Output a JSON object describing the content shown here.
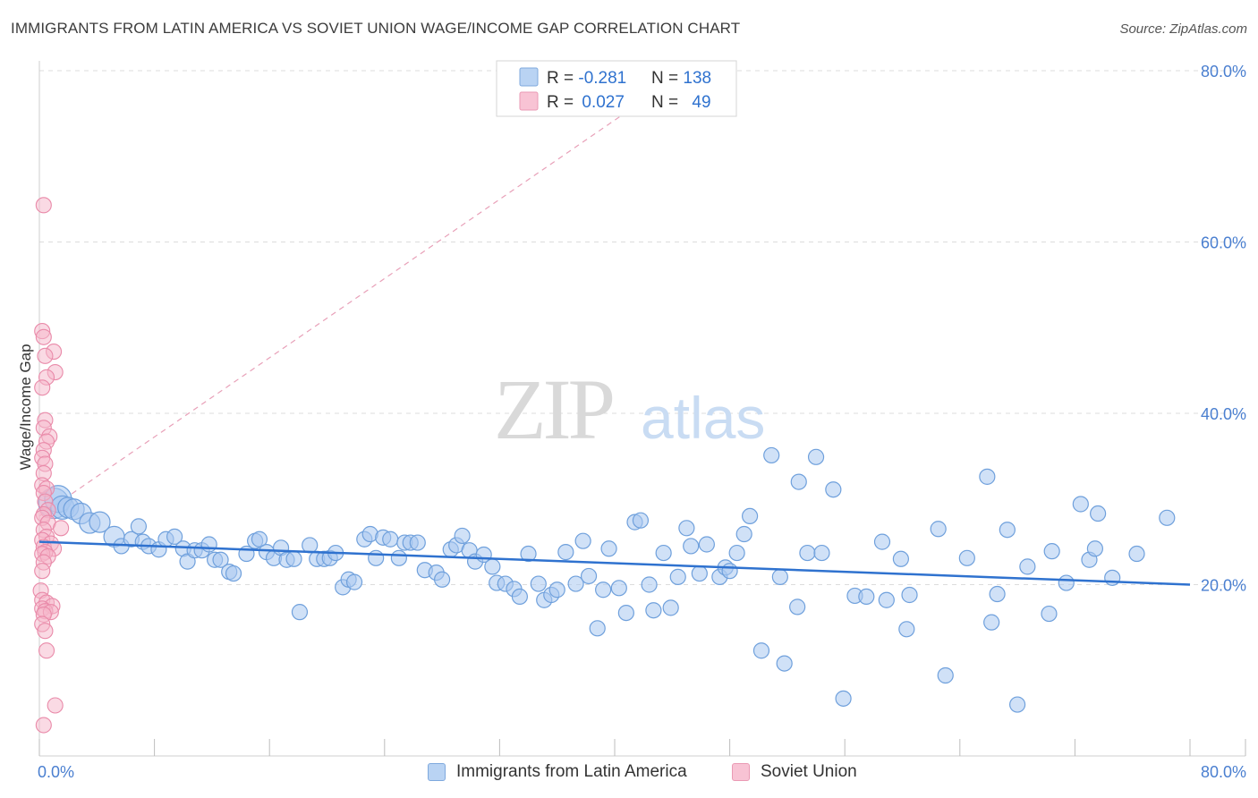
{
  "header": {
    "title": "IMMIGRANTS FROM LATIN AMERICA VS SOVIET UNION WAGE/INCOME GAP CORRELATION CHART",
    "source": "Source: ZipAtlas.com"
  },
  "watermark": {
    "zip": "ZIP",
    "atlas": "atlas"
  },
  "colors": {
    "blue_fill": "#a9c8f0",
    "blue_stroke": "#6fa0dc",
    "blue_line": "#2f72cf",
    "pink_fill": "#f6b5ca",
    "pink_stroke": "#e98aa9",
    "pink_line": "#e8a0b8",
    "axis_text": "#4a7fd0",
    "grid": "#dcdcdc"
  },
  "legend_top": {
    "rows": [
      {
        "r_label": "R = ",
        "r_value": "-0.281",
        "n_label": "N = ",
        "n_value": "138"
      },
      {
        "r_label": "R = ",
        "r_value": "0.027",
        "n_label": "N = ",
        "n_value": "49"
      }
    ]
  },
  "legend_bottom": {
    "series_a": "Immigrants from Latin America",
    "series_b": "Soviet Union"
  },
  "chart_data": {
    "type": "scatter",
    "title": "IMMIGRANTS FROM LATIN AMERICA VS SOVIET UNION WAGE/INCOME GAP CORRELATION CHART",
    "xlabel": "",
    "ylabel": "Wage/Income Gap",
    "xlim": [
      0,
      80
    ],
    "ylim": [
      0,
      80
    ],
    "x_tick_labels": [
      "0.0%",
      "80.0%"
    ],
    "y_tick_labels": [
      "20.0%",
      "40.0%",
      "60.0%",
      "80.0%"
    ],
    "y_ticks": [
      20,
      40,
      60,
      80
    ],
    "grid": true,
    "legend_position": "top-center",
    "series": [
      {
        "name": "Immigrants from Latin America",
        "r": -0.281,
        "n": 138,
        "trend": {
          "x": [
            0,
            80
          ],
          "y": [
            25.0,
            20.0
          ]
        },
        "points": [
          [
            1.0,
            29.5,
            5
          ],
          [
            1.3,
            30.0,
            4
          ],
          [
            1.6,
            29.0,
            3
          ],
          [
            2.0,
            29.0,
            2
          ],
          [
            2.4,
            28.8,
            2
          ],
          [
            2.9,
            28.3,
            2
          ],
          [
            3.5,
            27.2,
            2
          ],
          [
            4.2,
            27.3,
            2
          ],
          [
            5.2,
            25.6,
            2
          ],
          [
            5.7,
            24.5,
            1
          ],
          [
            6.4,
            25.3,
            1
          ],
          [
            6.9,
            26.8,
            1
          ],
          [
            7.2,
            25.0,
            1
          ],
          [
            7.6,
            24.5,
            1
          ],
          [
            8.3,
            24.1,
            1
          ],
          [
            8.8,
            25.3,
            1
          ],
          [
            9.4,
            25.6,
            1
          ],
          [
            10.0,
            24.2,
            1
          ],
          [
            10.3,
            22.7,
            1
          ],
          [
            10.8,
            24.0,
            1
          ],
          [
            11.3,
            24.0,
            1
          ],
          [
            11.8,
            24.7,
            1
          ],
          [
            12.2,
            22.9,
            1
          ],
          [
            12.6,
            22.9,
            1
          ],
          [
            13.2,
            21.5,
            1
          ],
          [
            13.5,
            21.3,
            1
          ],
          [
            14.4,
            23.6,
            1
          ],
          [
            15.0,
            25.1,
            1
          ],
          [
            15.3,
            25.3,
            1
          ],
          [
            15.8,
            23.8,
            1
          ],
          [
            16.3,
            23.1,
            1
          ],
          [
            16.8,
            24.3,
            1
          ],
          [
            17.2,
            22.9,
            1
          ],
          [
            17.7,
            23.0,
            1
          ],
          [
            18.1,
            16.8,
            1
          ],
          [
            18.8,
            24.6,
            1
          ],
          [
            19.3,
            23.0,
            1
          ],
          [
            19.8,
            23.0,
            1
          ],
          [
            20.2,
            23.1,
            1
          ],
          [
            20.6,
            23.7,
            1
          ],
          [
            21.1,
            19.7,
            1
          ],
          [
            21.5,
            20.6,
            1
          ],
          [
            21.9,
            20.3,
            1
          ],
          [
            22.6,
            25.3,
            1
          ],
          [
            23.0,
            25.9,
            1
          ],
          [
            23.4,
            23.1,
            1
          ],
          [
            23.9,
            25.5,
            1
          ],
          [
            24.4,
            25.3,
            1
          ],
          [
            25.0,
            23.1,
            1
          ],
          [
            25.4,
            24.9,
            1
          ],
          [
            25.8,
            24.9,
            1
          ],
          [
            26.3,
            24.9,
            1
          ],
          [
            26.8,
            21.7,
            1
          ],
          [
            27.6,
            21.4,
            1
          ],
          [
            28.0,
            20.6,
            1
          ],
          [
            28.6,
            24.1,
            1
          ],
          [
            29.0,
            24.6,
            1
          ],
          [
            29.4,
            25.7,
            1
          ],
          [
            29.9,
            24.0,
            1
          ],
          [
            30.3,
            22.7,
            1
          ],
          [
            30.9,
            23.5,
            1
          ],
          [
            31.5,
            22.1,
            1
          ],
          [
            31.8,
            20.2,
            1
          ],
          [
            32.4,
            20.1,
            1
          ],
          [
            33.0,
            19.5,
            1
          ],
          [
            33.4,
            18.6,
            1
          ],
          [
            34.0,
            23.6,
            1
          ],
          [
            34.7,
            20.1,
            1
          ],
          [
            35.1,
            18.2,
            1
          ],
          [
            35.6,
            18.8,
            1
          ],
          [
            36.0,
            19.4,
            1
          ],
          [
            36.6,
            23.8,
            1
          ],
          [
            37.3,
            20.1,
            1
          ],
          [
            37.8,
            25.1,
            1
          ],
          [
            38.2,
            21.0,
            1
          ],
          [
            38.8,
            14.9,
            1
          ],
          [
            39.2,
            19.4,
            1
          ],
          [
            39.6,
            24.2,
            1
          ],
          [
            40.3,
            19.6,
            1
          ],
          [
            40.8,
            16.7,
            1
          ],
          [
            41.4,
            27.3,
            1
          ],
          [
            41.8,
            27.5,
            1
          ],
          [
            42.4,
            20.0,
            1
          ],
          [
            42.7,
            17.0,
            1
          ],
          [
            43.4,
            23.7,
            1
          ],
          [
            43.9,
            17.3,
            1
          ],
          [
            44.4,
            20.9,
            1
          ],
          [
            45.0,
            26.6,
            1
          ],
          [
            45.3,
            24.5,
            1
          ],
          [
            45.9,
            21.3,
            1
          ],
          [
            46.4,
            24.7,
            1
          ],
          [
            47.3,
            20.9,
            1
          ],
          [
            47.7,
            22.0,
            1
          ],
          [
            48.0,
            21.6,
            1
          ],
          [
            48.5,
            23.7,
            1
          ],
          [
            49.0,
            25.9,
            1
          ],
          [
            49.4,
            28.0,
            1
          ],
          [
            50.2,
            12.3,
            1
          ],
          [
            50.9,
            35.1,
            1
          ],
          [
            51.5,
            20.9,
            1
          ],
          [
            51.8,
            10.8,
            1
          ],
          [
            52.7,
            17.4,
            1
          ],
          [
            52.8,
            32.0,
            1
          ],
          [
            53.4,
            23.7,
            1
          ],
          [
            54.0,
            34.9,
            1
          ],
          [
            54.4,
            23.7,
            1
          ],
          [
            55.2,
            31.1,
            1
          ],
          [
            55.9,
            6.7,
            1
          ],
          [
            56.7,
            18.7,
            1
          ],
          [
            57.5,
            18.6,
            1
          ],
          [
            58.6,
            25.0,
            1
          ],
          [
            58.9,
            18.2,
            1
          ],
          [
            59.9,
            23.0,
            1
          ],
          [
            60.3,
            14.8,
            1
          ],
          [
            60.5,
            18.8,
            1
          ],
          [
            62.5,
            26.5,
            1
          ],
          [
            63.0,
            9.4,
            1
          ],
          [
            64.5,
            23.1,
            1
          ],
          [
            65.9,
            32.6,
            1
          ],
          [
            66.2,
            15.6,
            1
          ],
          [
            66.6,
            18.9,
            1
          ],
          [
            67.3,
            26.4,
            1
          ],
          [
            68.0,
            6.0,
            1
          ],
          [
            68.7,
            22.1,
            1
          ],
          [
            70.2,
            16.6,
            1
          ],
          [
            70.4,
            23.9,
            1
          ],
          [
            71.4,
            20.2,
            1
          ],
          [
            72.4,
            29.4,
            1
          ],
          [
            73.0,
            22.9,
            1
          ],
          [
            73.4,
            24.2,
            1
          ],
          [
            73.6,
            28.3,
            1
          ],
          [
            74.6,
            20.8,
            1
          ],
          [
            76.3,
            23.6,
            1
          ],
          [
            78.4,
            27.8,
            1
          ]
        ]
      },
      {
        "name": "Soviet Union",
        "r": 0.027,
        "n": 49,
        "trend": {
          "x": [
            0,
            45
          ],
          "y": [
            28,
            80
          ]
        },
        "points": [
          [
            0.3,
            64.3,
            1
          ],
          [
            0.2,
            49.6,
            1
          ],
          [
            0.3,
            48.9,
            1
          ],
          [
            1.0,
            47.2,
            1
          ],
          [
            0.4,
            46.7,
            1
          ],
          [
            1.1,
            44.8,
            1
          ],
          [
            0.5,
            44.2,
            1
          ],
          [
            0.2,
            43.0,
            1
          ],
          [
            0.4,
            39.2,
            1
          ],
          [
            0.3,
            38.3,
            1
          ],
          [
            0.7,
            37.3,
            1
          ],
          [
            0.5,
            36.7,
            1
          ],
          [
            0.3,
            35.7,
            1
          ],
          [
            0.2,
            34.8,
            1
          ],
          [
            0.4,
            34.1,
            1
          ],
          [
            0.3,
            33.0,
            1
          ],
          [
            0.2,
            31.6,
            1
          ],
          [
            0.5,
            31.2,
            1
          ],
          [
            0.3,
            30.7,
            1
          ],
          [
            0.4,
            29.7,
            1
          ],
          [
            0.6,
            28.7,
            1
          ],
          [
            0.3,
            28.2,
            1
          ],
          [
            0.2,
            27.8,
            1
          ],
          [
            0.6,
            27.2,
            1
          ],
          [
            1.5,
            26.6,
            1
          ],
          [
            0.3,
            26.4,
            1
          ],
          [
            0.5,
            25.6,
            1
          ],
          [
            0.2,
            25.2,
            1
          ],
          [
            0.8,
            24.8,
            1
          ],
          [
            0.3,
            24.4,
            1
          ],
          [
            1.0,
            24.2,
            1
          ],
          [
            0.4,
            23.8,
            1
          ],
          [
            0.2,
            23.6,
            1
          ],
          [
            0.6,
            23.3,
            1
          ],
          [
            0.3,
            22.6,
            1
          ],
          [
            0.2,
            21.6,
            1
          ],
          [
            0.1,
            19.3,
            1
          ],
          [
            0.2,
            18.2,
            1
          ],
          [
            0.5,
            17.9,
            1
          ],
          [
            0.9,
            17.5,
            1
          ],
          [
            0.2,
            17.2,
            1
          ],
          [
            0.4,
            16.9,
            1
          ],
          [
            0.8,
            16.8,
            1
          ],
          [
            0.3,
            16.5,
            1
          ],
          [
            0.2,
            15.4,
            1
          ],
          [
            0.4,
            14.6,
            1
          ],
          [
            0.5,
            12.3,
            1
          ],
          [
            1.1,
            5.9,
            1
          ],
          [
            0.3,
            3.6,
            1
          ]
        ]
      }
    ]
  }
}
